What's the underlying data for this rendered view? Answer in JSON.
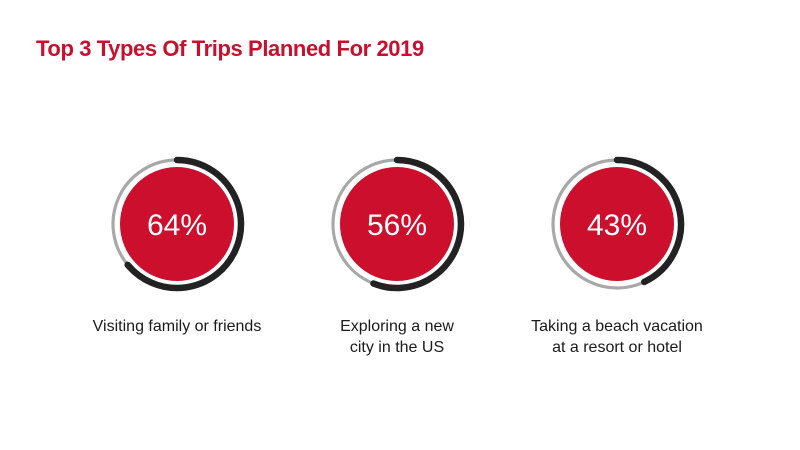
{
  "chart_data": {
    "type": "donut",
    "title": "Top 3 Types Of Trips Planned For 2019",
    "unit": "%",
    "items": [
      {
        "value": 64,
        "label": "64%",
        "caption_lines": [
          "Visiting family or friends"
        ]
      },
      {
        "value": 56,
        "label": "56%",
        "caption_lines": [
          "Exploring a new",
          "city in the US"
        ]
      },
      {
        "value": 43,
        "label": "43%",
        "caption_lines": [
          "Taking a beach vacation",
          "at a resort or hotel"
        ]
      }
    ]
  },
  "colors": {
    "title": "#c8102e",
    "inner_circle": "#cc0f2c",
    "progress_arc": "#222222",
    "track_arc": "#a8a8a8",
    "value_text": "#ffffff"
  }
}
